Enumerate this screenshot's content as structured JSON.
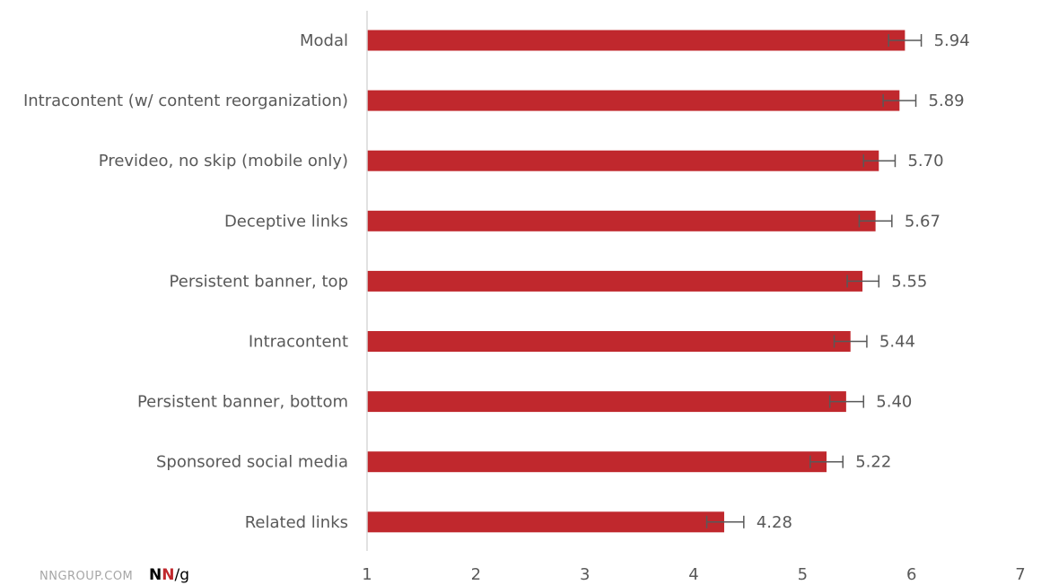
{
  "chart_data": {
    "type": "bar",
    "orientation": "horizontal",
    "categories": [
      "Modal",
      "Intracontent (w/ content reorganization)",
      "Prevideo, no skip (mobile only)",
      "Deceptive links",
      "Persistent banner, top",
      "Intracontent",
      "Persistent banner, bottom",
      "Sponsored social media",
      "Related links"
    ],
    "values": [
      5.94,
      5.89,
      5.7,
      5.67,
      5.55,
      5.44,
      5.4,
      5.22,
      4.28
    ],
    "value_labels": [
      "5.94",
      "5.89",
      "5.70",
      "5.67",
      "5.55",
      "5.44",
      "5.40",
      "5.22",
      "4.28"
    ],
    "error_low": [
      5.79,
      5.74,
      5.56,
      5.52,
      5.41,
      5.29,
      5.25,
      5.07,
      4.12
    ],
    "error_high": [
      6.09,
      6.04,
      5.85,
      5.82,
      5.7,
      5.59,
      5.56,
      5.37,
      4.46
    ],
    "xlim": [
      1,
      7
    ],
    "xticks": [
      "1",
      "2",
      "3",
      "4",
      "5",
      "6",
      "7"
    ],
    "title": "",
    "xlabel": "",
    "ylabel": "",
    "grid": false,
    "legend": "none",
    "bar_color": "#c0282d",
    "error_bar_color": "#595959",
    "axis_color": "#d9d9d9"
  },
  "footer": {
    "site": "NNGROUP.COM",
    "logo_n1": "N",
    "logo_n2": "N",
    "logo_slash_g": "/g",
    "logo_n1_color": "#000000",
    "logo_n2_color": "#c0282d"
  }
}
